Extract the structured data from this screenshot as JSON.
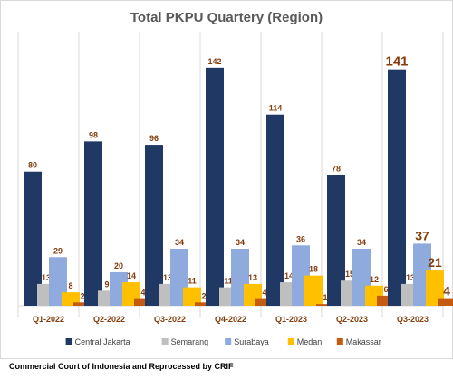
{
  "chart_data": {
    "type": "bar",
    "title": "Total PKPU Quartery (Region)",
    "categories": [
      "Q1-2022",
      "Q2-2022",
      "Q3-2022",
      "Q4-2022",
      "Q1-2023",
      "Q2-2023",
      "Q3-2023"
    ],
    "series": [
      {
        "name": "Central Jakarta",
        "color": "#1F3864",
        "values": [
          80,
          98,
          96,
          142,
          114,
          78,
          141
        ]
      },
      {
        "name": "Semarang",
        "color": "#BFBFBF",
        "values": [
          13,
          9,
          13,
          11,
          14,
          15,
          13
        ]
      },
      {
        "name": "Surabaya",
        "color": "#8FAADC",
        "values": [
          29,
          20,
          34,
          34,
          36,
          34,
          37
        ]
      },
      {
        "name": "Medan",
        "color": "#FFC000",
        "values": [
          8,
          14,
          11,
          13,
          18,
          12,
          21
        ]
      },
      {
        "name": "Makassar",
        "color": "#C55A11",
        "values": [
          2,
          4,
          2,
          4,
          1,
          6,
          4
        ]
      }
    ],
    "ylim": [
      0,
      150
    ],
    "grid": "vertical-separators",
    "legend": "bottom"
  },
  "source": "Commercial Court of Indonesia and Reprocessed by CRIF"
}
